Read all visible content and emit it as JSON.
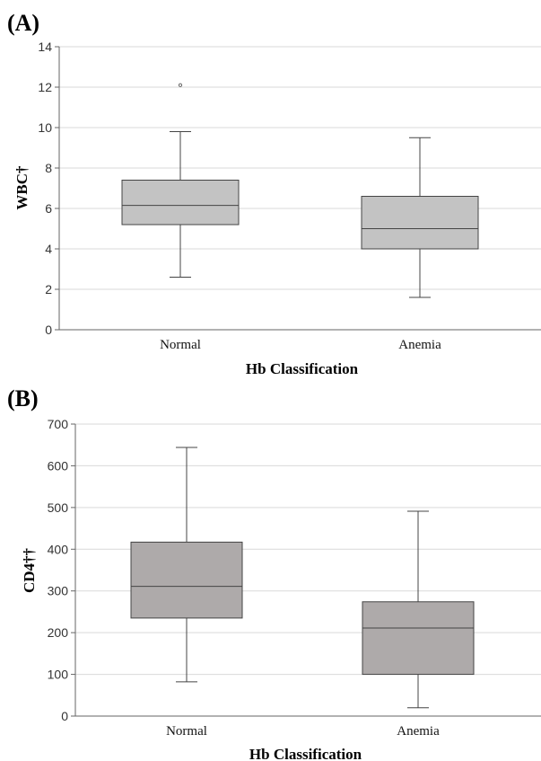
{
  "chart_data": [
    {
      "type": "boxplot",
      "panel_label": "(A)",
      "xlabel": "Hb Classification",
      "ylabel": "WBC†",
      "ylim": [
        0,
        14
      ],
      "yticks": [
        0,
        2,
        4,
        6,
        8,
        10,
        12,
        14
      ],
      "grid": true,
      "box_color": "#c3c3c3",
      "categories": [
        "Normal",
        "Anemia"
      ],
      "boxes": [
        {
          "category": "Normal",
          "min": 2.6,
          "q1": 5.2,
          "median": 6.15,
          "q3": 7.4,
          "max": 9.8,
          "outliers": [
            12.1
          ]
        },
        {
          "category": "Anemia",
          "min": 1.6,
          "q1": 4.0,
          "median": 5.0,
          "q3": 6.6,
          "max": 9.5,
          "outliers": []
        }
      ]
    },
    {
      "type": "boxplot",
      "panel_label": "(B)",
      "xlabel": "Hb Classification",
      "ylabel": "CD4††",
      "ylim": [
        0,
        700
      ],
      "yticks": [
        0,
        100,
        200,
        300,
        400,
        500,
        600,
        700
      ],
      "grid": true,
      "box_color": "#aeaaaa",
      "categories": [
        "Normal",
        "Anemia"
      ],
      "boxes": [
        {
          "category": "Normal",
          "min": 82,
          "q1": 235,
          "median": 311,
          "q3": 417,
          "max": 644,
          "outliers": []
        },
        {
          "category": "Anemia",
          "min": 20,
          "q1": 100,
          "median": 211,
          "q3": 274,
          "max": 491,
          "outliers": []
        }
      ]
    }
  ]
}
